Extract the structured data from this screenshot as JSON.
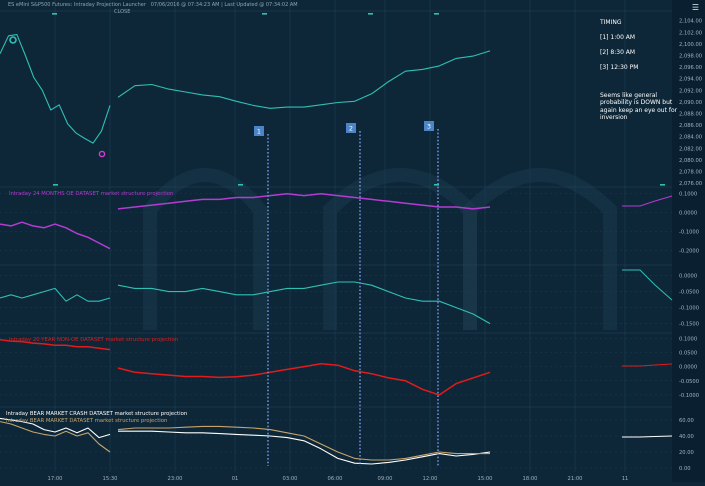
{
  "header": {
    "title": "ES eMini S&P500 Futures: Intraday Projection Launcher",
    "timestamp": "07/06/2016 @ 07:34:23 AM | Last Updated @ 07:34:02 AM",
    "close_label": "CLOSE",
    "tools_icon": "menu-icon"
  },
  "note": {
    "title": "TIMING",
    "lines": [
      "[1] 1:00 AM",
      "[2] 8:30 AM",
      "[3] 12:30 PM"
    ],
    "body": "Seems like general probability is DOWN but again keep an eye out for inversion"
  },
  "markers": [
    "1",
    "2",
    "3"
  ],
  "colors": {
    "background": "#0d2738",
    "price": "#2fc0b3",
    "magenta": "#b43cd2",
    "red": "#e31b1b",
    "white": "#ffffff",
    "tan": "#c7a46c",
    "marker_box": "#4c84c8",
    "marker_line": "#7a9be8"
  },
  "chart_data": {
    "type": "line",
    "x_tick_labels": [
      "17:00",
      "15:30",
      "23:00",
      "01",
      "03:00",
      "06:00",
      "09:00",
      "12:00",
      "15:00",
      "18:00",
      "21:00",
      "11"
    ],
    "panels": [
      {
        "id": "price",
        "ylim": [
          2075.5,
          2105.5
        ],
        "y_ticks": [
          "2,104.00",
          "2,102.00",
          "2,100.00",
          "2,098.00",
          "2,096.00",
          "2,094.00",
          "2,092.00",
          "2,090.00",
          "2,088.00",
          "2,086.00",
          "2,084.00",
          "2,082.00",
          "2,080.00",
          "2,078.00",
          "2,076.00"
        ],
        "series": [
          {
            "color": "#2fc0b3",
            "segment": "left",
            "values": [
              2098.3,
              2101.4,
              2101.6,
              2098.0,
              2094.2,
              2092.0,
              2088.6,
              2089.5,
              2086.2,
              2084.6,
              2083.7,
              2082.9,
              2085.0,
              2089.4
            ]
          },
          {
            "color": "#2fc0b3",
            "segment": "right",
            "values": [
              2090.8,
              2092.8,
              2093.0,
              2092.2,
              2091.7,
              2091.2,
              2090.9,
              2090.1,
              2089.4,
              2088.9,
              2089.1,
              2089.1,
              2089.5,
              2089.9,
              2090.1,
              2091.4,
              2093.5,
              2095.3,
              2095.6,
              2096.2,
              2097.5,
              2097.9,
              2098.8
            ]
          }
        ]
      },
      {
        "id": "magenta",
        "label": "Intraday 24 MONTHS OE DATASET market structure projection",
        "ylim": [
          -0.26,
          0.13
        ],
        "y_ticks": [
          "0.1000",
          "0.0000",
          "-0.1000",
          "-0.2000"
        ],
        "series": [
          {
            "color": "#b43cd2",
            "segment": "left",
            "values": [
              -0.06,
              -0.07,
              -0.05,
              -0.07,
              -0.08,
              -0.06,
              -0.08,
              -0.11,
              -0.13,
              -0.16,
              -0.19
            ]
          },
          {
            "color": "#b43cd2",
            "segment": "right",
            "values": [
              0.02,
              0.03,
              0.04,
              0.05,
              0.06,
              0.07,
              0.07,
              0.08,
              0.08,
              0.09,
              0.1,
              0.09,
              0.1,
              0.09,
              0.08,
              0.07,
              0.06,
              0.05,
              0.04,
              0.03,
              0.03,
              0.02,
              0.03
            ]
          }
        ]
      },
      {
        "id": "cyan",
        "ylim": [
          -0.17,
          0.03
        ],
        "y_ticks": [
          "0.0000",
          "-0.0500",
          "-0.1000",
          "-0.1500"
        ],
        "series": [
          {
            "color": "#2fc0b3",
            "segment": "left",
            "values": [
              -0.07,
              -0.06,
              -0.07,
              -0.06,
              -0.05,
              -0.04,
              -0.08,
              -0.06,
              -0.08,
              -0.08,
              -0.07
            ]
          },
          {
            "color": "#2fc0b3",
            "segment": "right",
            "values": [
              -0.03,
              -0.04,
              -0.04,
              -0.05,
              -0.05,
              -0.04,
              -0.05,
              -0.06,
              -0.06,
              -0.05,
              -0.04,
              -0.04,
              -0.03,
              -0.02,
              -0.02,
              -0.03,
              -0.05,
              -0.07,
              -0.08,
              -0.08,
              -0.1,
              -0.12,
              -0.15
            ]
          }
        ]
      },
      {
        "id": "red",
        "label": "Intraday 20 YEAR NON-OE DATASET market structure projection",
        "ylim": [
          -0.125,
          0.115
        ],
        "y_ticks": [
          "0.1000",
          "0.0500",
          "0.0000",
          "-0.0500",
          "-0.1000"
        ],
        "series": [
          {
            "color": "#e31b1b",
            "segment": "left",
            "values": [
              0.095,
              0.09,
              0.088,
              0.083,
              0.08,
              0.075,
              0.075,
              0.07,
              0.07,
              0.065,
              0.06
            ]
          },
          {
            "color": "#e31b1b",
            "segment": "right",
            "values": [
              -0.005,
              -0.02,
              -0.025,
              -0.03,
              -0.035,
              -0.035,
              -0.038,
              -0.036,
              -0.03,
              -0.02,
              -0.01,
              0.0,
              0.01,
              0.005,
              -0.015,
              -0.025,
              -0.04,
              -0.05,
              -0.08,
              -0.1,
              -0.06,
              -0.04,
              -0.02
            ]
          }
        ]
      },
      {
        "id": "bear",
        "labels": [
          "Intraday BEAR MARKET CRASH DATASET market structure projection",
          "Intraday BEAR MARKET DATASET market structure projection"
        ],
        "ylim": [
          -5,
          75
        ],
        "y_ticks": [
          "60.00",
          "40.00",
          "20.00",
          "0.00"
        ],
        "series": [
          {
            "color": "#ffffff",
            "segment": "left",
            "values": [
              62,
              60,
              58,
              55,
              48,
              45,
              50,
              44,
              50,
              38,
              42
            ]
          },
          {
            "color": "#ffffff",
            "segment": "right",
            "values": [
              46,
              46,
              46,
              45,
              44,
              44,
              43,
              42,
              41,
              40,
              38,
              34,
              24,
              12,
              6,
              5,
              7,
              10,
              14,
              18,
              15,
              17,
              20
            ]
          },
          {
            "color": "#c7a46c",
            "segment": "left",
            "values": [
              58,
              55,
              50,
              45,
              42,
              40,
              46,
              40,
              44,
              30,
              20
            ]
          },
          {
            "color": "#c7a46c",
            "segment": "right",
            "values": [
              48,
              50,
              50,
              50,
              51,
              52,
              52,
              51,
              50,
              48,
              44,
              40,
              30,
              20,
              12,
              10,
              10,
              12,
              16,
              20,
              18,
              18,
              18
            ]
          }
        ]
      }
    ]
  }
}
